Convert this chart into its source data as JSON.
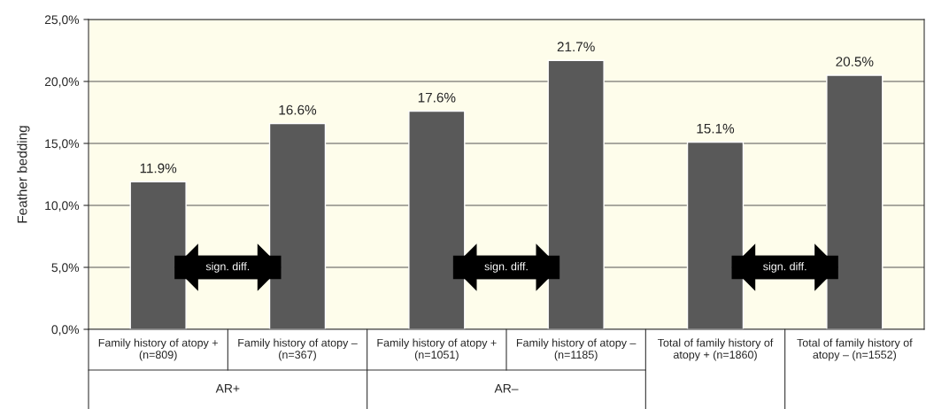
{
  "chart_data": {
    "type": "bar",
    "ylabel": "Feather bedding",
    "categories": [
      "Family history of atopy +\n(n=809)",
      "Family history of atopy –\n(n=367)",
      "Family history of atopy +\n(n=1051)",
      "Family history of atopy –\n(n=1185)",
      "Total of family history of\natopy + (n=1860)",
      "Total of family history of\natopy – (n=1552)"
    ],
    "values": [
      11.9,
      16.6,
      17.6,
      21.7,
      15.1,
      20.5
    ],
    "value_labels": [
      "11.9%",
      "16.6%",
      "17.6%",
      "21.7%",
      "15.1%",
      "20.5%"
    ],
    "color": "#595959",
    "ylim": [
      0,
      25
    ],
    "yticks": [
      {
        "value": 0,
        "label": "0,0%"
      },
      {
        "value": 5,
        "label": "5,0%"
      },
      {
        "value": 10,
        "label": "10,0%"
      },
      {
        "value": 15,
        "label": "15,0%"
      },
      {
        "value": 20,
        "label": "20,0%"
      },
      {
        "value": 25,
        "label": "25,0%"
      }
    ],
    "grid": "y",
    "annotations": [
      "AR+",
      "AR–",
      "sign. diff.",
      "sign. diff.",
      "sign. diff."
    ]
  }
}
